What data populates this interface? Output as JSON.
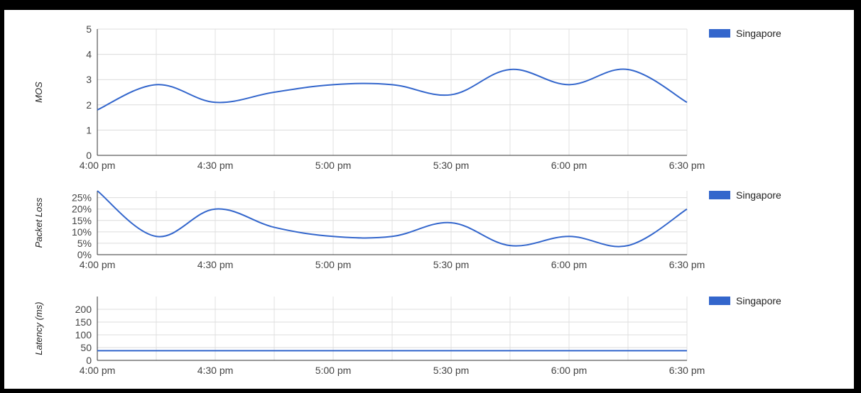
{
  "chart_data": [
    {
      "type": "line",
      "ylabel": "MOS",
      "x": [
        "4:00 pm",
        "4:15 pm",
        "4:30 pm",
        "4:45 pm",
        "5:00 pm",
        "5:15 pm",
        "5:30 pm",
        "5:45 pm",
        "6:00 pm",
        "6:15 pm",
        "6:30 pm"
      ],
      "xticks": [
        "4:00 pm",
        "4:30 pm",
        "5:00 pm",
        "5:30 pm",
        "6:00 pm",
        "6:30 pm"
      ],
      "yticks": [
        "0",
        "1",
        "2",
        "3",
        "4",
        "5"
      ],
      "ylim": [
        0,
        5
      ],
      "grid": true,
      "legend": "top-right",
      "series": [
        {
          "name": "Singapore",
          "color": "#3366cc",
          "values": [
            1.8,
            2.8,
            2.1,
            2.5,
            2.8,
            2.8,
            2.4,
            3.4,
            2.8,
            3.4,
            2.1
          ]
        }
      ]
    },
    {
      "type": "line",
      "ylabel": "Packet Loss",
      "x": [
        "4:00 pm",
        "4:15 pm",
        "4:30 pm",
        "4:45 pm",
        "5:00 pm",
        "5:15 pm",
        "5:30 pm",
        "5:45 pm",
        "6:00 pm",
        "6:15 pm",
        "6:30 pm"
      ],
      "xticks": [
        "4:00 pm",
        "4:30 pm",
        "5:00 pm",
        "5:30 pm",
        "6:00 pm",
        "6:30 pm"
      ],
      "yticks": [
        "0%",
        "5%",
        "10%",
        "15%",
        "20%",
        "25%"
      ],
      "ylim": [
        0,
        28
      ],
      "grid": true,
      "legend": "top-right",
      "series": [
        {
          "name": "Singapore",
          "color": "#3366cc",
          "values": [
            28,
            8,
            20,
            12,
            8,
            8,
            14,
            4,
            8,
            4,
            20
          ]
        }
      ]
    },
    {
      "type": "line",
      "ylabel": "Latency (ms)",
      "x": [
        "4:00 pm",
        "4:15 pm",
        "4:30 pm",
        "4:45 pm",
        "5:00 pm",
        "5:15 pm",
        "5:30 pm",
        "5:45 pm",
        "6:00 pm",
        "6:15 pm",
        "6:30 pm"
      ],
      "xticks": [
        "4:00 pm",
        "4:30 pm",
        "5:00 pm",
        "5:30 pm",
        "6:00 pm",
        "6:30 pm"
      ],
      "yticks": [
        "0",
        "50",
        "100",
        "150",
        "200"
      ],
      "ylim": [
        0,
        250
      ],
      "grid": true,
      "legend": "top-right",
      "series": [
        {
          "name": "Singapore",
          "color": "#3366cc",
          "values": [
            38,
            38,
            38,
            38,
            38,
            38,
            38,
            38,
            38,
            38,
            38
          ]
        }
      ]
    }
  ]
}
